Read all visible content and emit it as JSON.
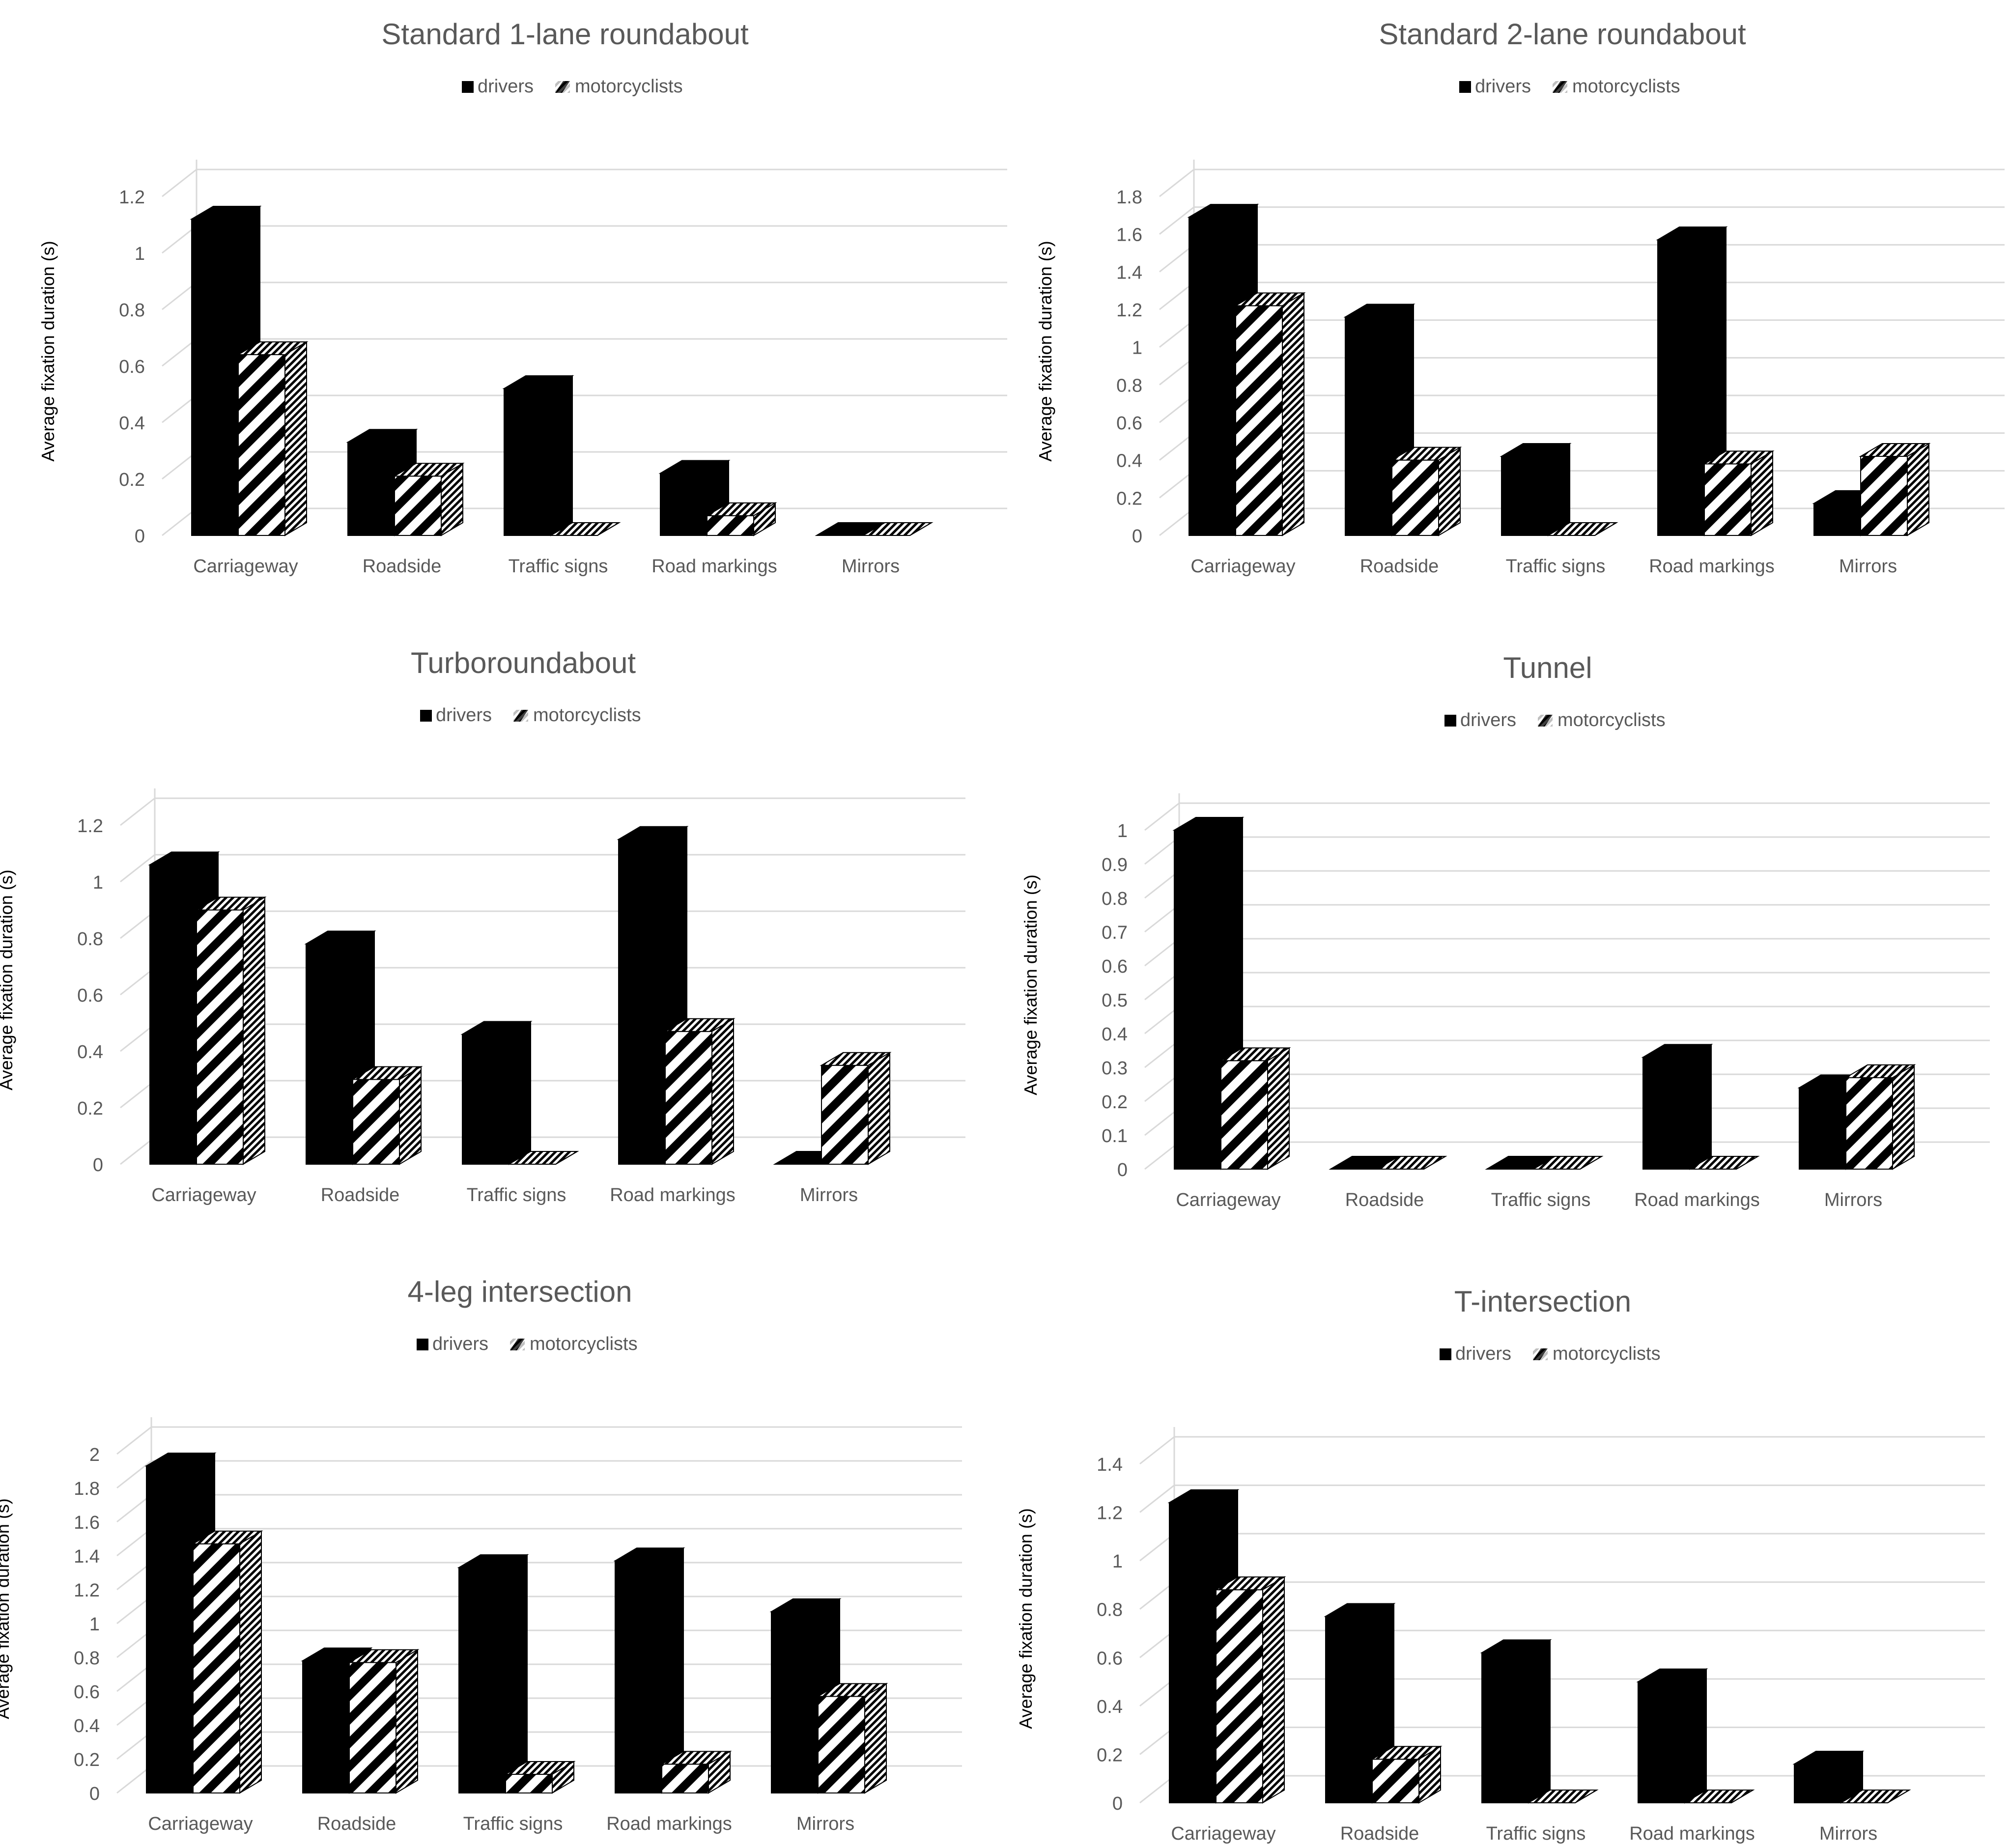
{
  "legend": {
    "series": [
      "drivers",
      "motorcyclists"
    ]
  },
  "chart_data": [
    {
      "type": "bar",
      "title": "Standard 1-lane roundabout",
      "ylabel": "Average fixation duration (s)",
      "xlabel": "",
      "categories": [
        "Carriageway",
        "Roadside",
        "Traffic signs",
        "Road markings",
        "Mirrors"
      ],
      "series": [
        {
          "name": "drivers",
          "values": [
            1.12,
            0.33,
            0.52,
            0.22,
            0
          ]
        },
        {
          "name": "motorcyclists",
          "values": [
            0.64,
            0.21,
            0,
            0.07,
            0
          ]
        }
      ],
      "ylim": [
        0,
        1.2
      ],
      "yticks": [
        "0",
        "0.2",
        "0.4",
        "0.6",
        "0.8",
        "1",
        "1.2"
      ],
      "legend_position": "top-center",
      "grid": true
    },
    {
      "type": "bar",
      "title": "Standard 2-lane roundabout",
      "ylabel": "Average fixation duration (s)",
      "xlabel": "",
      "categories": [
        "Carriageway",
        "Roadside",
        "Traffic signs",
        "Road markings",
        "Mirrors"
      ],
      "series": [
        {
          "name": "drivers",
          "values": [
            1.69,
            1.16,
            0.42,
            1.57,
            0.17
          ]
        },
        {
          "name": "motorcyclists",
          "values": [
            1.22,
            0.4,
            0,
            0.38,
            0.42
          ]
        }
      ],
      "ylim": [
        0,
        1.8
      ],
      "yticks": [
        "0",
        "0.2",
        "0.4",
        "0.6",
        "0.8",
        "1",
        "1.2",
        "1.4",
        "1.6",
        "1.8"
      ],
      "legend_position": "top-center",
      "grid": true
    },
    {
      "type": "bar",
      "title": "Turboroundabout",
      "ylabel": "Average fixation duration (s)",
      "xlabel": "",
      "categories": [
        "Carriageway",
        "Roadside",
        "Traffic signs",
        "Road markings",
        "Mirrors"
      ],
      "series": [
        {
          "name": "drivers",
          "values": [
            1.06,
            0.78,
            0.46,
            1.15,
            0
          ]
        },
        {
          "name": "motorcyclists",
          "values": [
            0.9,
            0.3,
            0,
            0.47,
            0.35
          ]
        }
      ],
      "ylim": [
        0,
        1.2
      ],
      "yticks": [
        "0",
        "0.2",
        "0.4",
        "0.6",
        "0.8",
        "1",
        "1.2"
      ],
      "legend_position": "top-center",
      "grid": true
    },
    {
      "type": "bar",
      "title": "Tunnel",
      "ylabel": "Average fixation duration (s)",
      "xlabel": "",
      "categories": [
        "Carriageway",
        "Roadside",
        "Traffic signs",
        "Road markings",
        "Mirrors"
      ],
      "series": [
        {
          "name": "drivers",
          "values": [
            1.0,
            0,
            0,
            0.33,
            0.24
          ]
        },
        {
          "name": "motorcyclists",
          "values": [
            0.32,
            0,
            0,
            0,
            0.27
          ]
        }
      ],
      "ylim": [
        0,
        1
      ],
      "yticks": [
        "0",
        "0.1",
        "0.2",
        "0.3",
        "0.4",
        "0.5",
        "0.6",
        "0.7",
        "0.8",
        "0.9",
        "1"
      ],
      "legend_position": "top-center",
      "grid": true
    },
    {
      "type": "bar",
      "title": "4-leg intersection",
      "ylabel": "Average fixation duration (s)",
      "xlabel": "",
      "categories": [
        "Carriageway",
        "Roadside",
        "Traffic signs",
        "Road markings",
        "Mirrors"
      ],
      "series": [
        {
          "name": "drivers",
          "values": [
            1.93,
            0.78,
            1.33,
            1.37,
            1.07
          ]
        },
        {
          "name": "motorcyclists",
          "values": [
            1.47,
            0.77,
            0.11,
            0.17,
            0.57
          ]
        }
      ],
      "ylim": [
        0,
        2
      ],
      "yticks": [
        "0",
        "0.2",
        "0.4",
        "0.6",
        "0.8",
        "1",
        "1.2",
        "1.4",
        "1.6",
        "1.8",
        "2"
      ],
      "legend_position": "top-center",
      "grid": true
    },
    {
      "type": "bar",
      "title": "T-intersection",
      "ylabel": "Average fixation duration (s)",
      "xlabel": "",
      "categories": [
        "Carriageway",
        "Roadside",
        "Traffic signs",
        "Road markings",
        "Mirrors"
      ],
      "series": [
        {
          "name": "drivers",
          "values": [
            1.24,
            0.77,
            0.62,
            0.5,
            0.16
          ]
        },
        {
          "name": "motorcyclists",
          "values": [
            0.88,
            0.18,
            0,
            0,
            0
          ]
        }
      ],
      "ylim": [
        0,
        1.4
      ],
      "yticks": [
        "0",
        "0.2",
        "0.4",
        "0.6",
        "0.8",
        "1",
        "1.2",
        "1.4"
      ],
      "legend_position": "top-center",
      "grid": true
    }
  ]
}
